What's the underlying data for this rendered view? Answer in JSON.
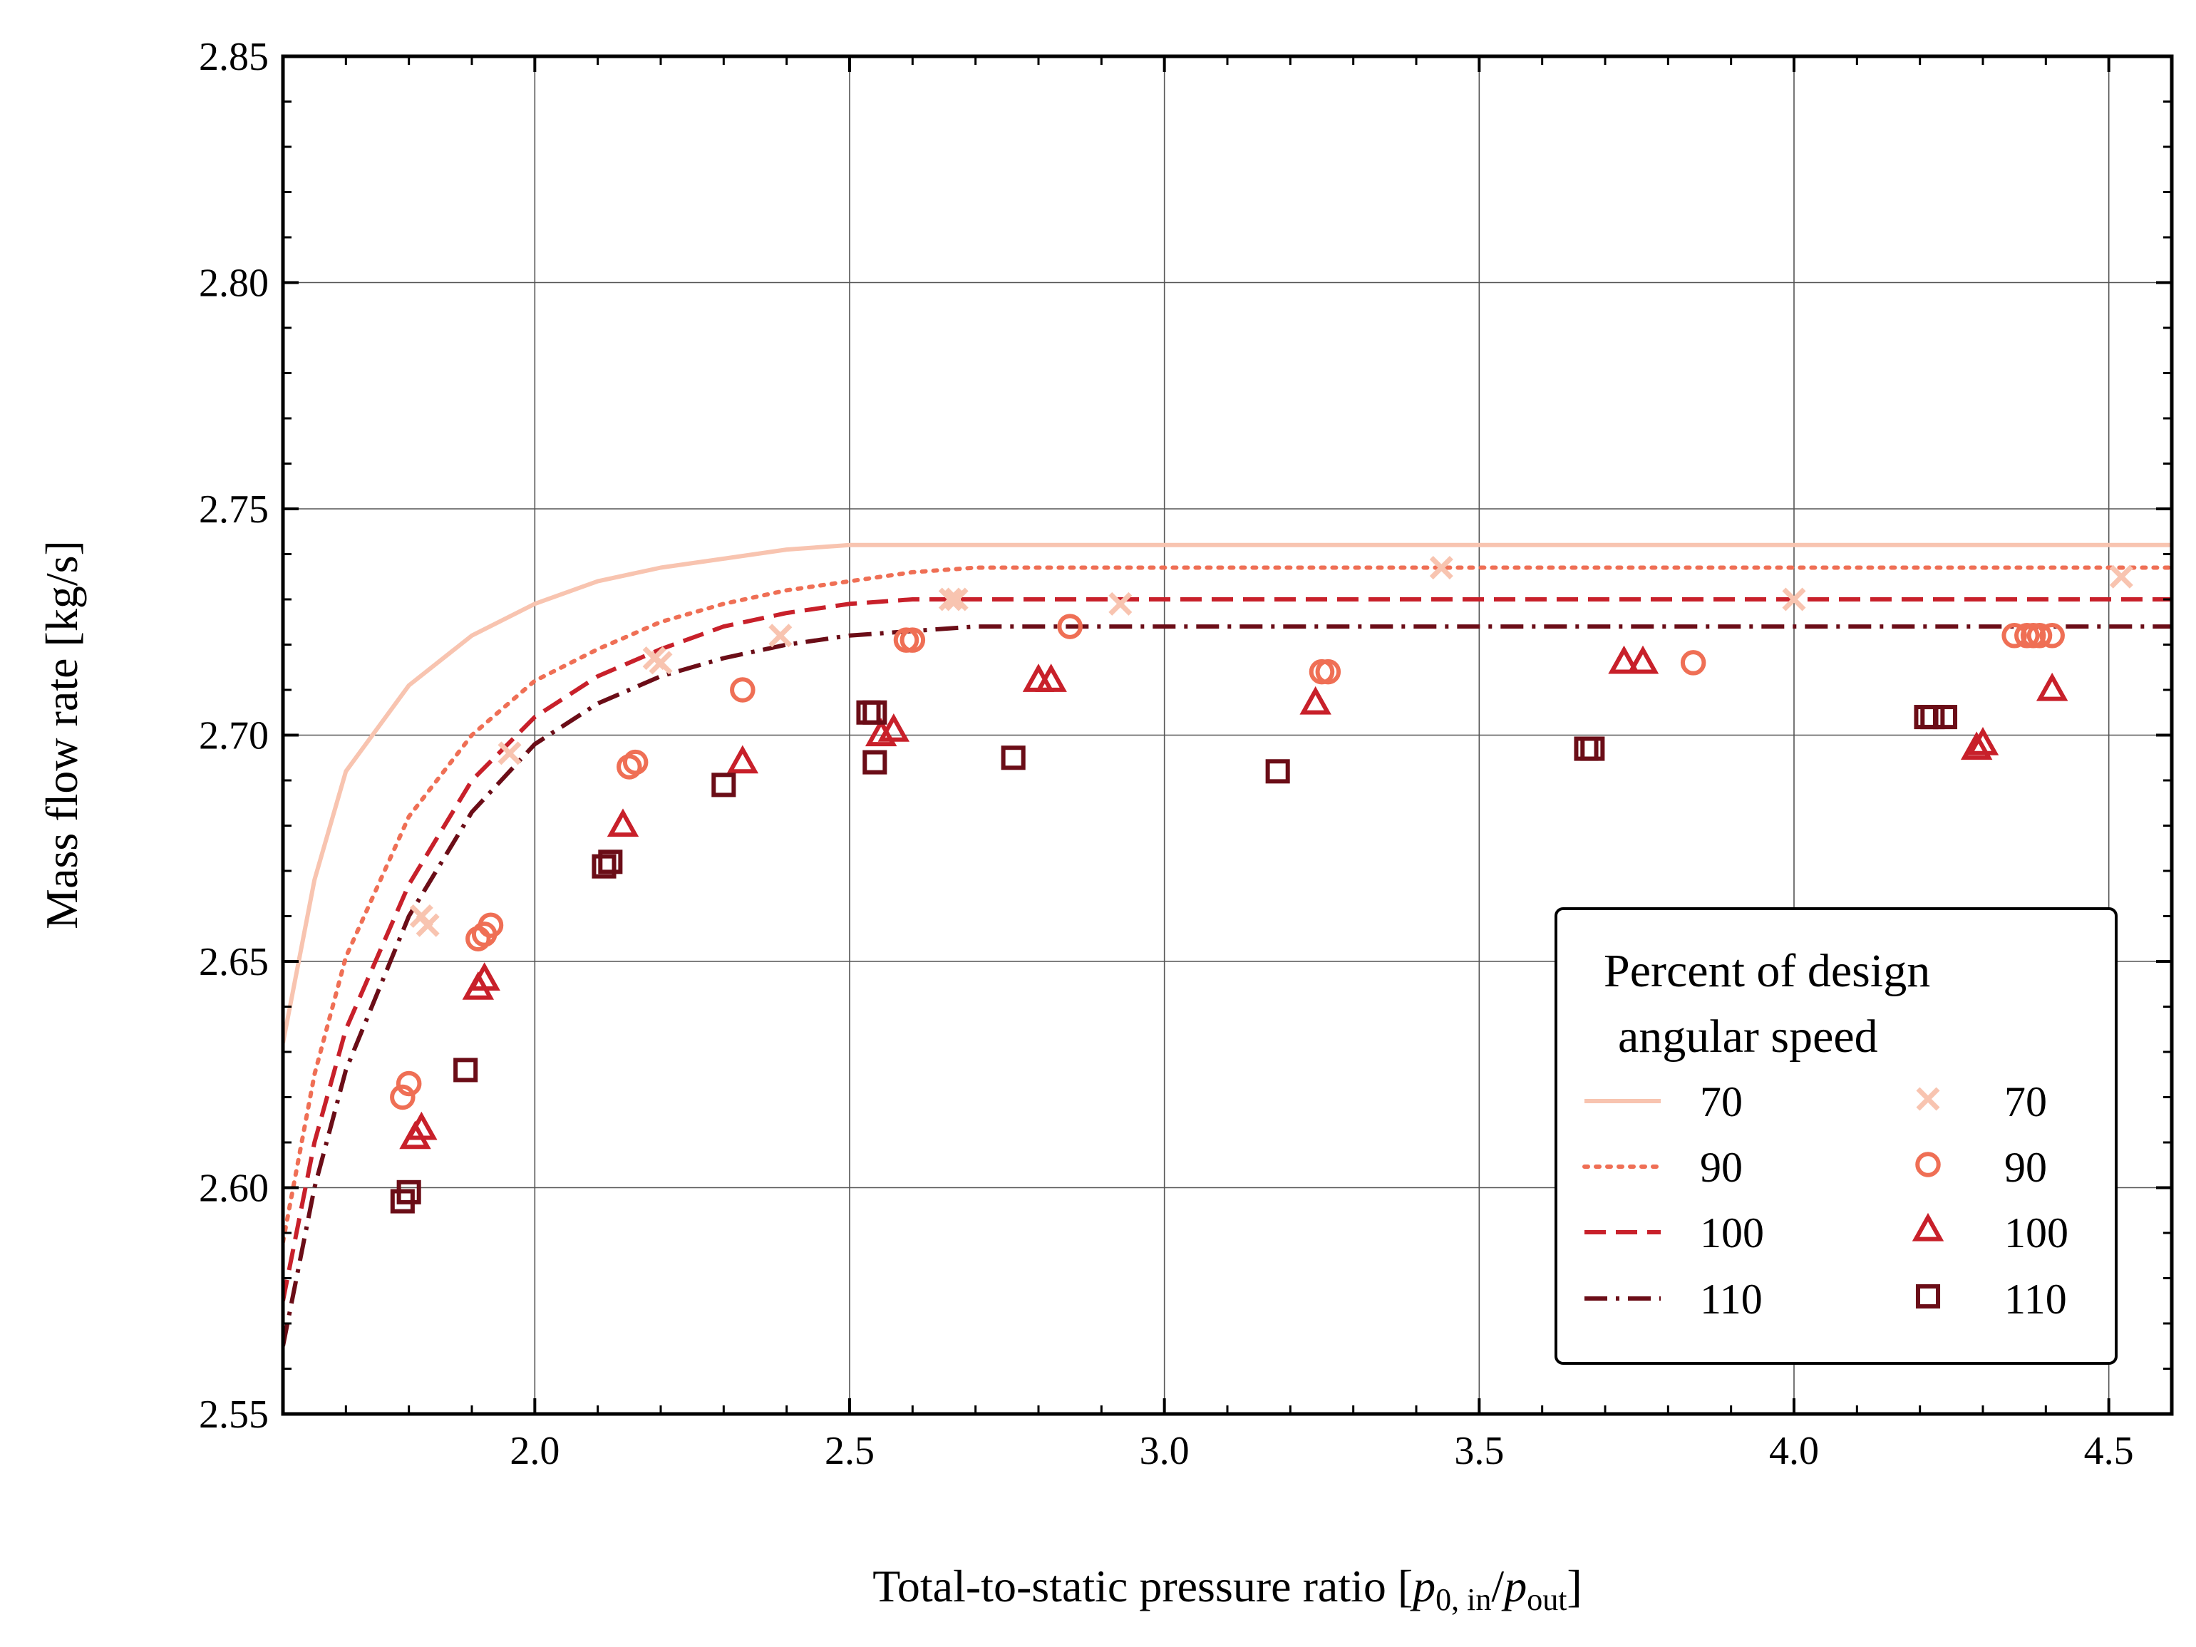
{
  "chart_data": {
    "type": "scatter",
    "xlabel": "Total-to-static pressure ratio [p0, in/pout]",
    "xlabel_parts": {
      "prefix": "Total-to-static pressure ratio [",
      "num_var": "p",
      "num_sub": "0, in",
      "sep": "/",
      "den_var": "p",
      "den_sub": "out",
      "suffix": "]"
    },
    "ylabel": "Mass flow rate [kg/s]",
    "xlim": [
      1.6,
      4.6
    ],
    "ylim": [
      2.55,
      2.85
    ],
    "xticks": [
      "2.0",
      "2.5",
      "3.0",
      "3.5",
      "4.0",
      "4.5"
    ],
    "yticks": [
      "2.55",
      "2.60",
      "2.65",
      "2.70",
      "2.75",
      "2.80",
      "2.85"
    ],
    "grid": true,
    "legend": {
      "title_lines": [
        "Percent of design",
        "angular speed"
      ],
      "placement": "lower-right",
      "line_labels": [
        "70",
        "90",
        "100",
        "110"
      ],
      "marker_labels": [
        "70",
        "90",
        "100",
        "110"
      ]
    },
    "colors": {
      "70": "#f8c4b0",
      "90": "#ef6f55",
      "100": "#c8202a",
      "110": "#6b0d17"
    },
    "line_series": [
      {
        "name": "70",
        "style": "solid",
        "x": [
          1.6,
          1.65,
          1.7,
          1.8,
          1.9,
          2.0,
          2.1,
          2.2,
          2.3,
          2.4,
          2.5,
          2.6,
          2.7,
          3.0,
          3.5,
          4.0,
          4.6
        ],
        "y": [
          2.632,
          2.668,
          2.692,
          2.711,
          2.722,
          2.729,
          2.734,
          2.737,
          2.739,
          2.741,
          2.742,
          2.742,
          2.742,
          2.742,
          2.742,
          2.742,
          2.742
        ]
      },
      {
        "name": "90",
        "style": "dotted",
        "x": [
          1.6,
          1.65,
          1.7,
          1.8,
          1.9,
          2.0,
          2.1,
          2.2,
          2.3,
          2.4,
          2.5,
          2.6,
          2.7,
          3.0,
          3.5,
          4.0,
          4.6
        ],
        "y": [
          2.588,
          2.625,
          2.651,
          2.682,
          2.7,
          2.712,
          2.719,
          2.725,
          2.729,
          2.732,
          2.734,
          2.736,
          2.737,
          2.737,
          2.737,
          2.737,
          2.737
        ]
      },
      {
        "name": "100",
        "style": "dashed",
        "x": [
          1.6,
          1.65,
          1.7,
          1.8,
          1.9,
          2.0,
          2.1,
          2.2,
          2.3,
          2.4,
          2.5,
          2.6,
          2.7,
          3.0,
          3.5,
          4.0,
          4.6
        ],
        "y": [
          2.575,
          2.61,
          2.635,
          2.667,
          2.69,
          2.704,
          2.713,
          2.719,
          2.724,
          2.727,
          2.729,
          2.73,
          2.73,
          2.73,
          2.73,
          2.73,
          2.73
        ]
      },
      {
        "name": "110",
        "style": "dashdot",
        "x": [
          1.6,
          1.65,
          1.7,
          1.8,
          1.9,
          2.0,
          2.1,
          2.2,
          2.3,
          2.4,
          2.5,
          2.6,
          2.7,
          3.0,
          3.5,
          4.0,
          4.6
        ],
        "y": [
          2.565,
          2.6,
          2.626,
          2.66,
          2.683,
          2.698,
          2.707,
          2.713,
          2.717,
          2.72,
          2.722,
          2.723,
          2.724,
          2.724,
          2.724,
          2.724,
          2.724
        ]
      }
    ],
    "marker_series": [
      {
        "name": "70",
        "marker": "x",
        "x": [
          1.82,
          1.83,
          1.96,
          2.19,
          2.2,
          2.39,
          2.66,
          2.67,
          2.93,
          3.44,
          4.0,
          4.52
        ],
        "y": [
          2.66,
          2.658,
          2.696,
          2.717,
          2.716,
          2.722,
          2.73,
          2.73,
          2.729,
          2.737,
          2.73,
          2.735
        ]
      },
      {
        "name": "90",
        "marker": "circle",
        "x": [
          1.79,
          1.8,
          1.91,
          1.92,
          1.93,
          2.15,
          2.16,
          2.33,
          2.59,
          2.6,
          2.85,
          3.25,
          3.26,
          3.84,
          4.35,
          4.37,
          4.38,
          4.39,
          4.41
        ],
        "y": [
          2.62,
          2.623,
          2.655,
          2.656,
          2.658,
          2.693,
          2.694,
          2.71,
          2.721,
          2.721,
          2.724,
          2.714,
          2.714,
          2.716,
          2.722,
          2.722,
          2.722,
          2.722,
          2.722
        ]
      },
      {
        "name": "100",
        "marker": "triangle",
        "x": [
          1.81,
          1.82,
          1.91,
          1.92,
          2.14,
          2.33,
          2.55,
          2.57,
          2.8,
          2.82,
          3.24,
          3.73,
          3.76,
          4.29,
          4.3,
          4.41
        ],
        "y": [
          2.611,
          2.613,
          2.644,
          2.646,
          2.68,
          2.694,
          2.7,
          2.701,
          2.712,
          2.712,
          2.707,
          2.716,
          2.716,
          2.697,
          2.698,
          2.71
        ]
      },
      {
        "name": "110",
        "marker": "square",
        "x": [
          1.79,
          1.8,
          1.89,
          2.11,
          2.12,
          2.3,
          2.53,
          2.54,
          2.54,
          2.76,
          3.18,
          3.67,
          3.68,
          4.21,
          4.22,
          4.24
        ],
        "y": [
          2.597,
          2.599,
          2.626,
          2.671,
          2.672,
          2.689,
          2.705,
          2.705,
          2.694,
          2.695,
          2.692,
          2.697,
          2.697,
          2.704,
          2.704,
          2.704
        ]
      }
    ]
  }
}
